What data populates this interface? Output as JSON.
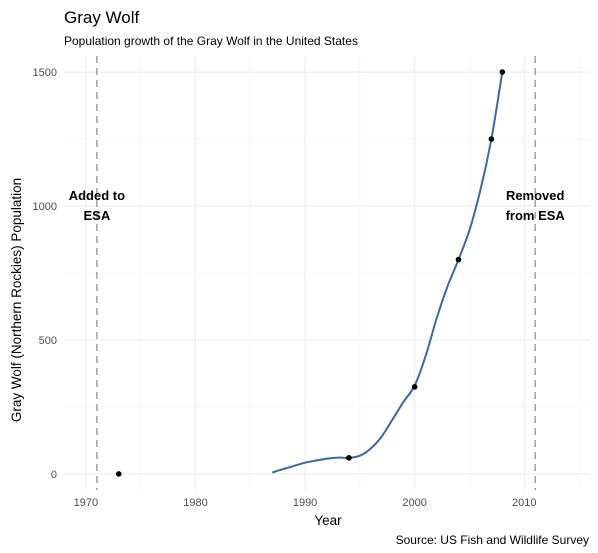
{
  "chart_data": {
    "type": "line",
    "title": "Gray Wolf",
    "subtitle": "Population growth of the Gray Wolf in the United States",
    "xlabel": "Year",
    "ylabel": "Gray Wolf (Northern Rockies) Population",
    "caption": "Source: US Fish and Wildlife Survey",
    "xlim": [
      1968,
      2016
    ],
    "ylim": [
      -60,
      1560
    ],
    "x_ticks": [
      1970,
      1980,
      1990,
      2000,
      2010
    ],
    "y_ticks": [
      0,
      500,
      1000,
      1500
    ],
    "x_tick_labels": [
      "1970",
      "1980",
      "1990",
      "2000",
      "2010"
    ],
    "y_tick_labels": [
      "0",
      "500",
      "1000",
      "1500"
    ],
    "grid": true,
    "points": {
      "x": [
        1973,
        1994,
        2000,
        2004,
        2007,
        2008
      ],
      "y": [
        0,
        60,
        325,
        800,
        1250,
        1500
      ]
    },
    "smooth_line": {
      "color": "#3a66b0",
      "x": [
        1987,
        1988,
        1989,
        1990,
        1991,
        1992,
        1993,
        1994,
        1995,
        1996,
        1997,
        1998,
        1999,
        2000,
        2001,
        2002,
        2003,
        2004,
        2005,
        2006,
        2007,
        2008
      ],
      "y": [
        5,
        18,
        30,
        42,
        50,
        57,
        61,
        60,
        68,
        95,
        140,
        205,
        270,
        330,
        440,
        580,
        700,
        800,
        910,
        1060,
        1250,
        1500
      ]
    },
    "vertical_lines": [
      {
        "x": 1971,
        "label_lines": [
          "Added to",
          "ESA"
        ]
      },
      {
        "x": 2011,
        "label_lines": [
          "Removed",
          "from ESA"
        ]
      }
    ]
  }
}
